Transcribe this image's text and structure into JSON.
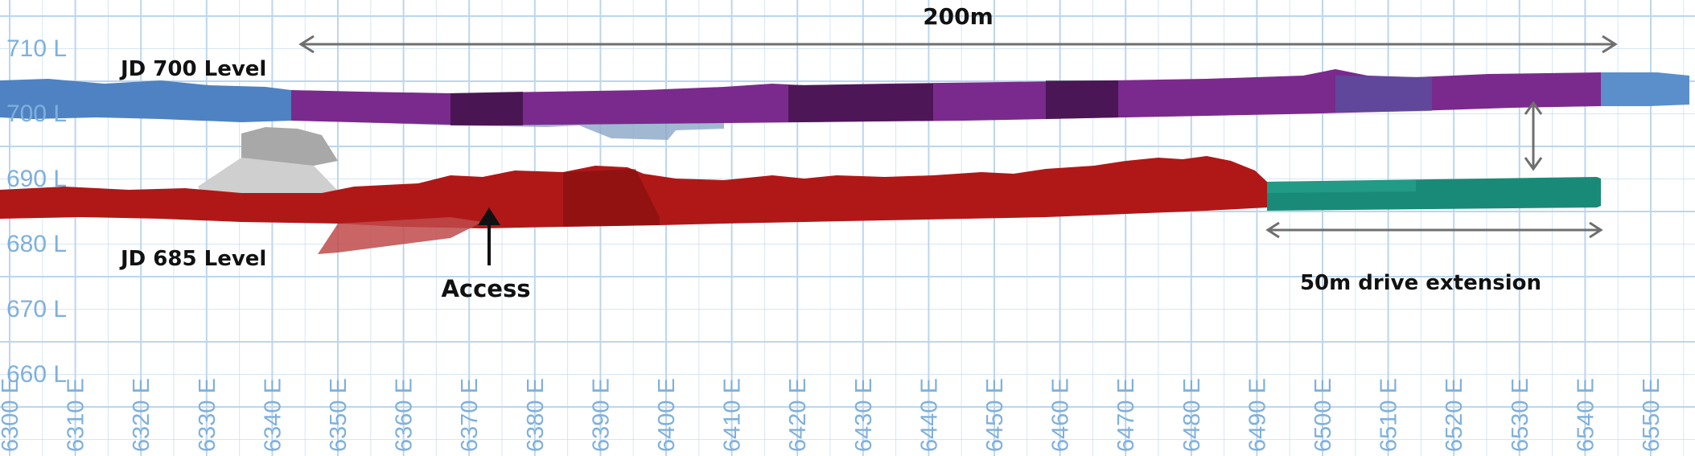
{
  "figure": {
    "dimension_top": "200m",
    "level_700_label": "JD 700 Level",
    "level_685_label": "JD 685 Level",
    "access_label": "Access",
    "extension_label": "50m drive extension"
  },
  "axes": {
    "elevation_ticks": [
      "710 L",
      "700 L",
      "690 L",
      "680 L",
      "670 L",
      "660 L"
    ],
    "easting_ticks": [
      "6300 E",
      "6310 E",
      "6320 E",
      "6330 E",
      "6340 E",
      "6350 E",
      "6360 E",
      "6370 E",
      "6380 E",
      "6390 E",
      "6400 E",
      "6410 E",
      "6420 E",
      "6430 E",
      "6440 E",
      "6450 E",
      "6460 E",
      "6470 E",
      "6480 E",
      "6490 E",
      "6500 E",
      "6510 E",
      "6520 E",
      "6530 E",
      "6540 E",
      "6550 E"
    ],
    "grid": true
  },
  "colors": {
    "grid": "#bcd6ee",
    "axis_text": "#7fb0dc",
    "level_700_existing": "#4a7fc0",
    "level_700_purple": "#7a2a8c",
    "level_685_existing": "#b01818",
    "extension": "#1a8a78",
    "grey_ramp": "#9a9a9a",
    "arrow": "#7a7a7a"
  }
}
